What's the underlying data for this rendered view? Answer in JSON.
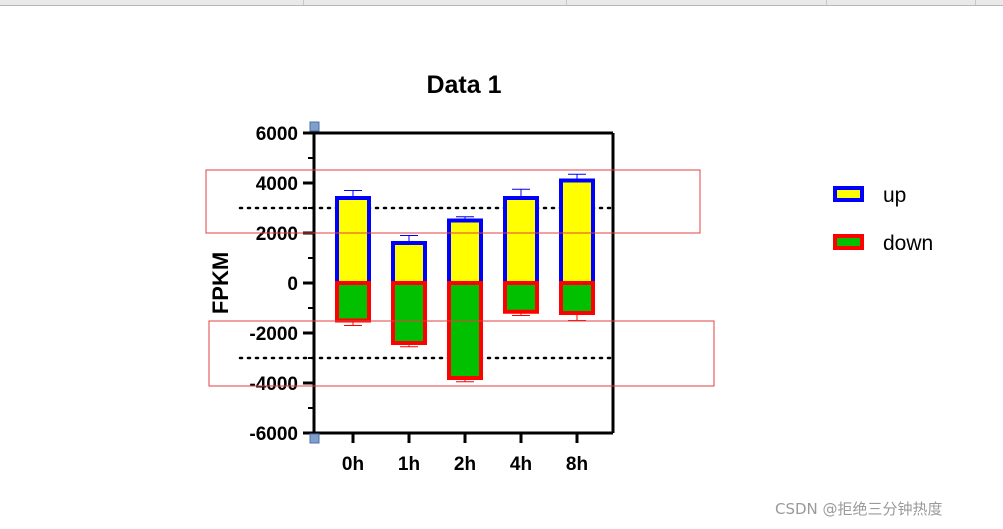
{
  "chart_data": {
    "type": "bar",
    "title": "Data 1",
    "ylabel": "FPKM",
    "xlabel": "",
    "categories": [
      "0h",
      "1h",
      "2h",
      "4h",
      "8h"
    ],
    "ylim": [
      -6000,
      6000
    ],
    "yticks": [
      6000,
      4000,
      2000,
      0,
      -2000,
      -4000,
      -6000
    ],
    "ytick_labels": [
      "6000",
      "4000",
      "2000",
      "0",
      "-2000",
      "-4000",
      "-6000"
    ],
    "series": [
      {
        "name": "up",
        "values": [
          3400,
          1600,
          2500,
          3400,
          4100
        ],
        "errors": [
          300,
          300,
          150,
          350,
          250
        ],
        "fill": "#ffff00",
        "edge": "#0000ff"
      },
      {
        "name": "down",
        "values": [
          -1500,
          -2400,
          -3800,
          -1150,
          -1200
        ],
        "errors": [
          200,
          150,
          150,
          150,
          300
        ],
        "fill": "#00c000",
        "edge": "#ff0000"
      }
    ],
    "reference_lines": [
      3000,
      -3000
    ],
    "legend": "right",
    "grid": false
  },
  "watermark": "CSDN @拒绝三分钟热度"
}
